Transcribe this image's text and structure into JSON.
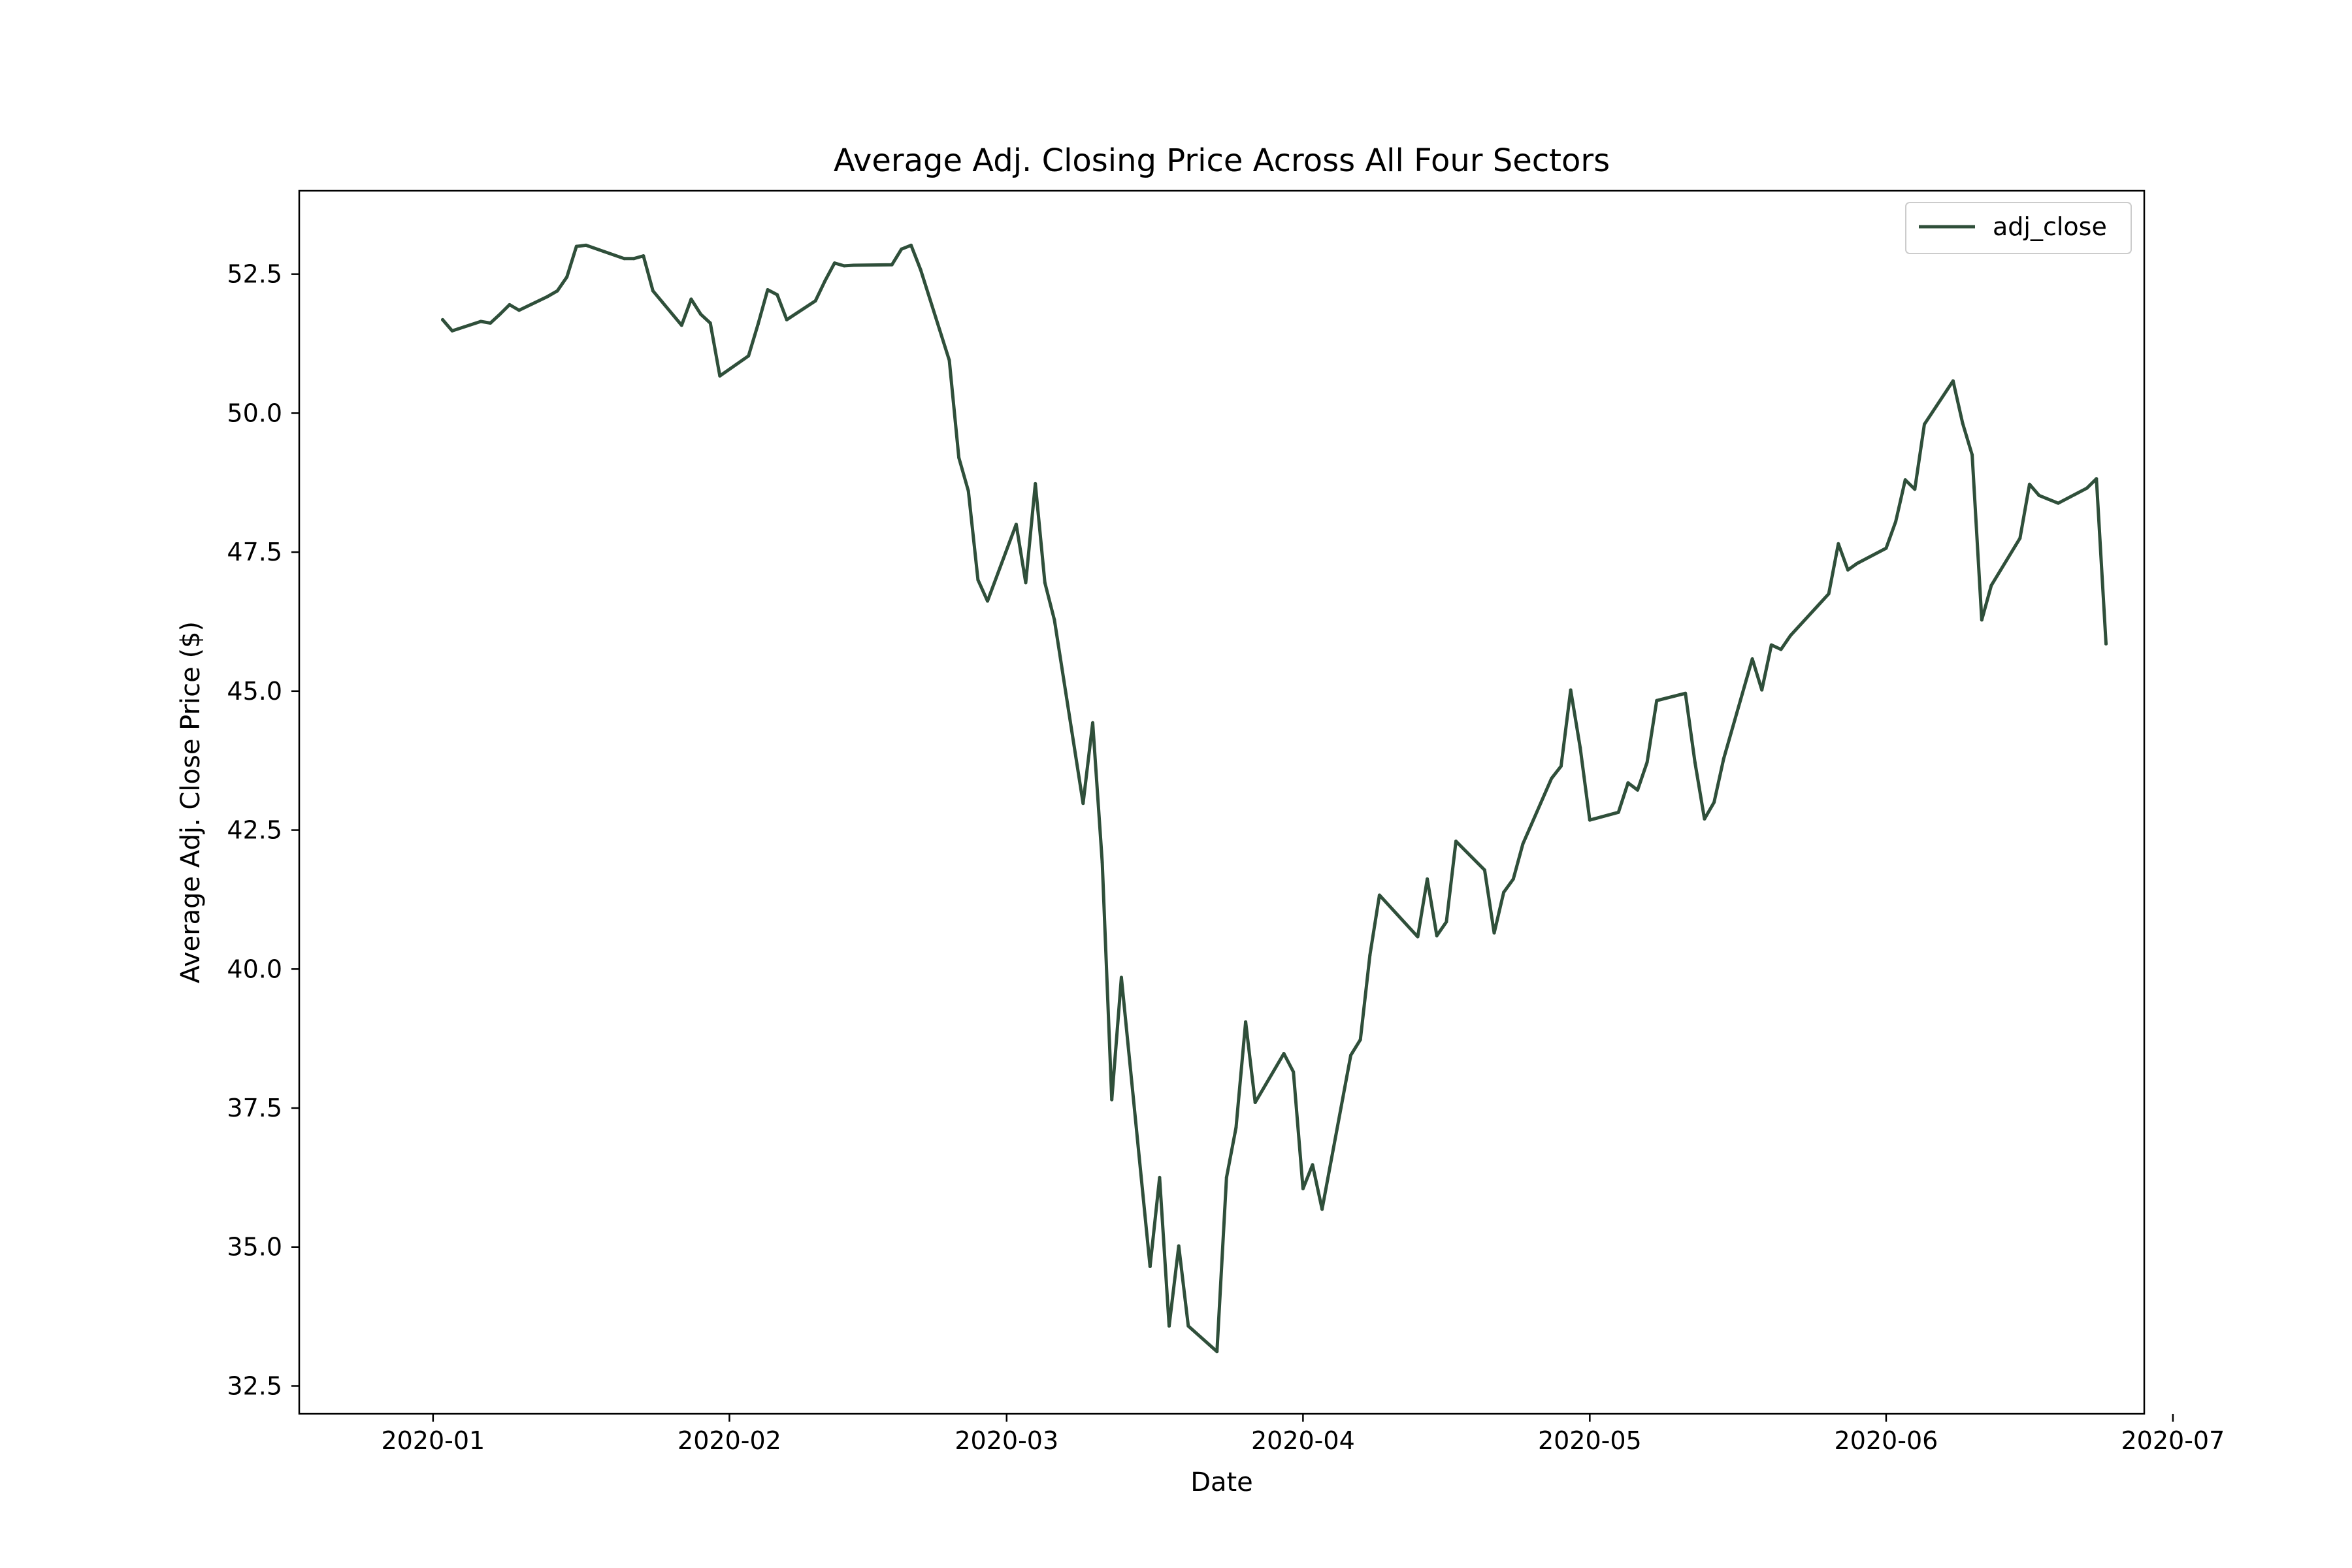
{
  "chart_data": {
    "type": "line",
    "title": "Average Adj. Closing Price Across All Four Sectors",
    "xlabel": "Date",
    "ylabel": "Average Adj. Close Price ($)",
    "xlim": [
      "2019-12-18",
      "2020-06-28"
    ],
    "ylim": [
      32.0,
      54.0
    ],
    "x_ticks": [
      "2020-01",
      "2020-02",
      "2020-03",
      "2020-04",
      "2020-05",
      "2020-06",
      "2020-07"
    ],
    "x_tick_dates": [
      "2020-01-01",
      "2020-02-01",
      "2020-03-01",
      "2020-04-01",
      "2020-05-01",
      "2020-06-01",
      "2020-07-01"
    ],
    "y_ticks": [
      "32.5",
      "35.0",
      "37.5",
      "40.0",
      "42.5",
      "45.0",
      "47.5",
      "50.0",
      "52.5"
    ],
    "grid": false,
    "legend_position": "top-right",
    "line_color": "#2f4f3a",
    "series": [
      {
        "name": "adj_close",
        "x": [
          "2020-01-02",
          "2020-01-03",
          "2020-01-06",
          "2020-01-07",
          "2020-01-08",
          "2020-01-09",
          "2020-01-10",
          "2020-01-13",
          "2020-01-14",
          "2020-01-15",
          "2020-01-16",
          "2020-01-17",
          "2020-01-21",
          "2020-01-22",
          "2020-01-23",
          "2020-01-24",
          "2020-01-27",
          "2020-01-28",
          "2020-01-29",
          "2020-01-30",
          "2020-01-31",
          "2020-02-03",
          "2020-02-04",
          "2020-02-05",
          "2020-02-06",
          "2020-02-07",
          "2020-02-10",
          "2020-02-11",
          "2020-02-12",
          "2020-02-13",
          "2020-02-14",
          "2020-02-18",
          "2020-02-19",
          "2020-02-20",
          "2020-02-21",
          "2020-02-24",
          "2020-02-25",
          "2020-02-26",
          "2020-02-27",
          "2020-02-28",
          "2020-03-02",
          "2020-03-03",
          "2020-03-04",
          "2020-03-05",
          "2020-03-06",
          "2020-03-09",
          "2020-03-10",
          "2020-03-11",
          "2020-03-12",
          "2020-03-13",
          "2020-03-16",
          "2020-03-17",
          "2020-03-18",
          "2020-03-19",
          "2020-03-20",
          "2020-03-23",
          "2020-03-24",
          "2020-03-25",
          "2020-03-26",
          "2020-03-27",
          "2020-03-30",
          "2020-03-31",
          "2020-04-01",
          "2020-04-02",
          "2020-04-03",
          "2020-04-06",
          "2020-04-07",
          "2020-04-08",
          "2020-04-09",
          "2020-04-13",
          "2020-04-14",
          "2020-04-15",
          "2020-04-16",
          "2020-04-17",
          "2020-04-20",
          "2020-04-21",
          "2020-04-22",
          "2020-04-23",
          "2020-04-24",
          "2020-04-27",
          "2020-04-28",
          "2020-04-29",
          "2020-04-30",
          "2020-05-01",
          "2020-05-04",
          "2020-05-05",
          "2020-05-06",
          "2020-05-07",
          "2020-05-08",
          "2020-05-11",
          "2020-05-12",
          "2020-05-13",
          "2020-05-14",
          "2020-05-15",
          "2020-05-18",
          "2020-05-19",
          "2020-05-20",
          "2020-05-21",
          "2020-05-22",
          "2020-05-26",
          "2020-05-27",
          "2020-05-28",
          "2020-05-29",
          "2020-06-01",
          "2020-06-02",
          "2020-06-03",
          "2020-06-04",
          "2020-06-05",
          "2020-06-08",
          "2020-06-09",
          "2020-06-10",
          "2020-06-11",
          "2020-06-12",
          "2020-06-15",
          "2020-06-16",
          "2020-06-17",
          "2020-06-18",
          "2020-06-19",
          "2020-06-22",
          "2020-06-23",
          "2020-06-24"
        ],
        "y": [
          51.68,
          51.48,
          51.65,
          51.62,
          51.78,
          51.95,
          51.85,
          52.1,
          52.2,
          52.45,
          53.0,
          53.02,
          52.78,
          52.78,
          52.83,
          52.2,
          51.58,
          52.05,
          51.78,
          51.62,
          50.67,
          51.03,
          51.6,
          52.22,
          52.13,
          51.68,
          52.02,
          52.38,
          52.7,
          52.65,
          52.66,
          52.67,
          52.95,
          53.02,
          52.58,
          50.95,
          49.2,
          48.6,
          47.0,
          46.62,
          48.0,
          46.95,
          48.73,
          46.95,
          46.28,
          42.98,
          44.43,
          41.92,
          37.65,
          39.85,
          34.65,
          36.25,
          33.58,
          35.02,
          33.58,
          33.12,
          36.25,
          37.15,
          39.05,
          37.6,
          38.48,
          38.15,
          36.05,
          36.48,
          35.68,
          38.45,
          38.73,
          40.25,
          41.33,
          40.58,
          41.62,
          40.6,
          40.85,
          42.3,
          41.78,
          40.65,
          41.38,
          41.62,
          42.25,
          43.43,
          43.65,
          45.02,
          43.98,
          42.68,
          42.82,
          43.35,
          43.22,
          43.72,
          44.83,
          44.96,
          43.72,
          42.7,
          43.0,
          43.78,
          45.58,
          45.02,
          45.83,
          45.75,
          46.0,
          46.75,
          47.65,
          47.18,
          47.3,
          47.57,
          48.05,
          48.8,
          48.63,
          49.8,
          50.58,
          49.82,
          49.25,
          46.28,
          46.9,
          47.75,
          48.72,
          48.52,
          48.45,
          48.38,
          48.65,
          48.82,
          45.85
        ]
      }
    ]
  }
}
